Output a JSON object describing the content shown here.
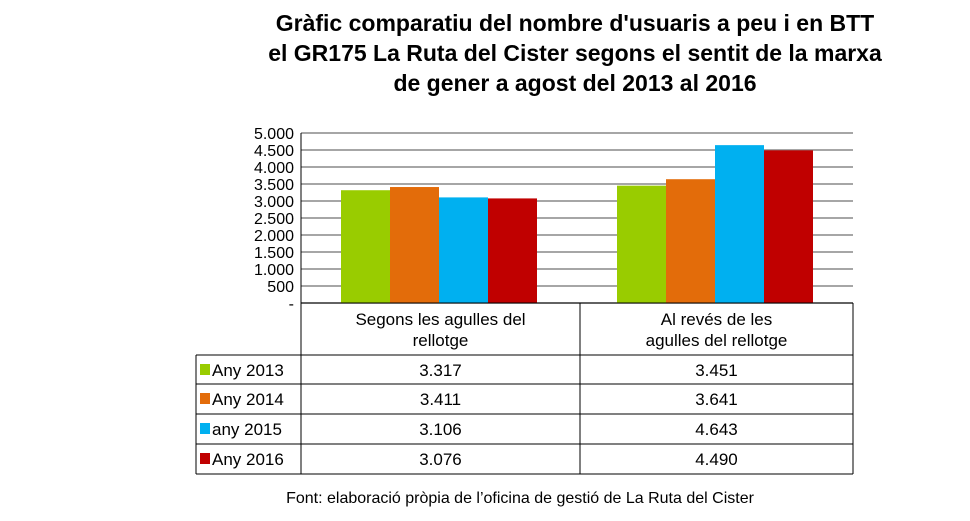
{
  "chart_data": {
    "type": "bar",
    "title": [
      "Gràfic comparatiu del nombre d'usuaris a peu i en BTT",
      "el GR175 La Ruta del Cister segons el sentit de la marxa",
      "de gener a agost del 2013 al 2016"
    ],
    "categories": [
      [
        "Segons les agulles del",
        "rellotge"
      ],
      [
        "Al revés  de les",
        "agulles del rellotge"
      ]
    ],
    "series": [
      {
        "name": "Any 2013",
        "color": "#99cc00",
        "values": [
          3317,
          3451
        ],
        "labels": [
          "3.317",
          "3.451"
        ]
      },
      {
        "name": "Any 2014",
        "color": "#e36c0a",
        "values": [
          3411,
          3641
        ],
        "labels": [
          "3.411",
          "3.641"
        ]
      },
      {
        "name": "any 2015",
        "color": "#00b0f0",
        "values": [
          3106,
          4643
        ],
        "labels": [
          "3.106",
          "4.643"
        ]
      },
      {
        "name": "Any 2016",
        "color": "#c00000",
        "values": [
          3076,
          4490
        ],
        "labels": [
          "3.076",
          "4.490"
        ]
      }
    ],
    "ylim": [
      0,
      5000
    ],
    "yticks": [
      0,
      500,
      1000,
      1500,
      2000,
      2500,
      3000,
      3500,
      4000,
      4500,
      5000
    ],
    "ytick_labels": [
      "-",
      "500",
      "1.000",
      "1.500",
      "2.000",
      "2.500",
      "3.000",
      "3.500",
      "4.000",
      "4.500",
      "5.000"
    ],
    "grid": true,
    "legend": "data-table"
  },
  "footer": "Font: elaboració pròpia de l’oficina de gestió de La Ruta del Cister"
}
